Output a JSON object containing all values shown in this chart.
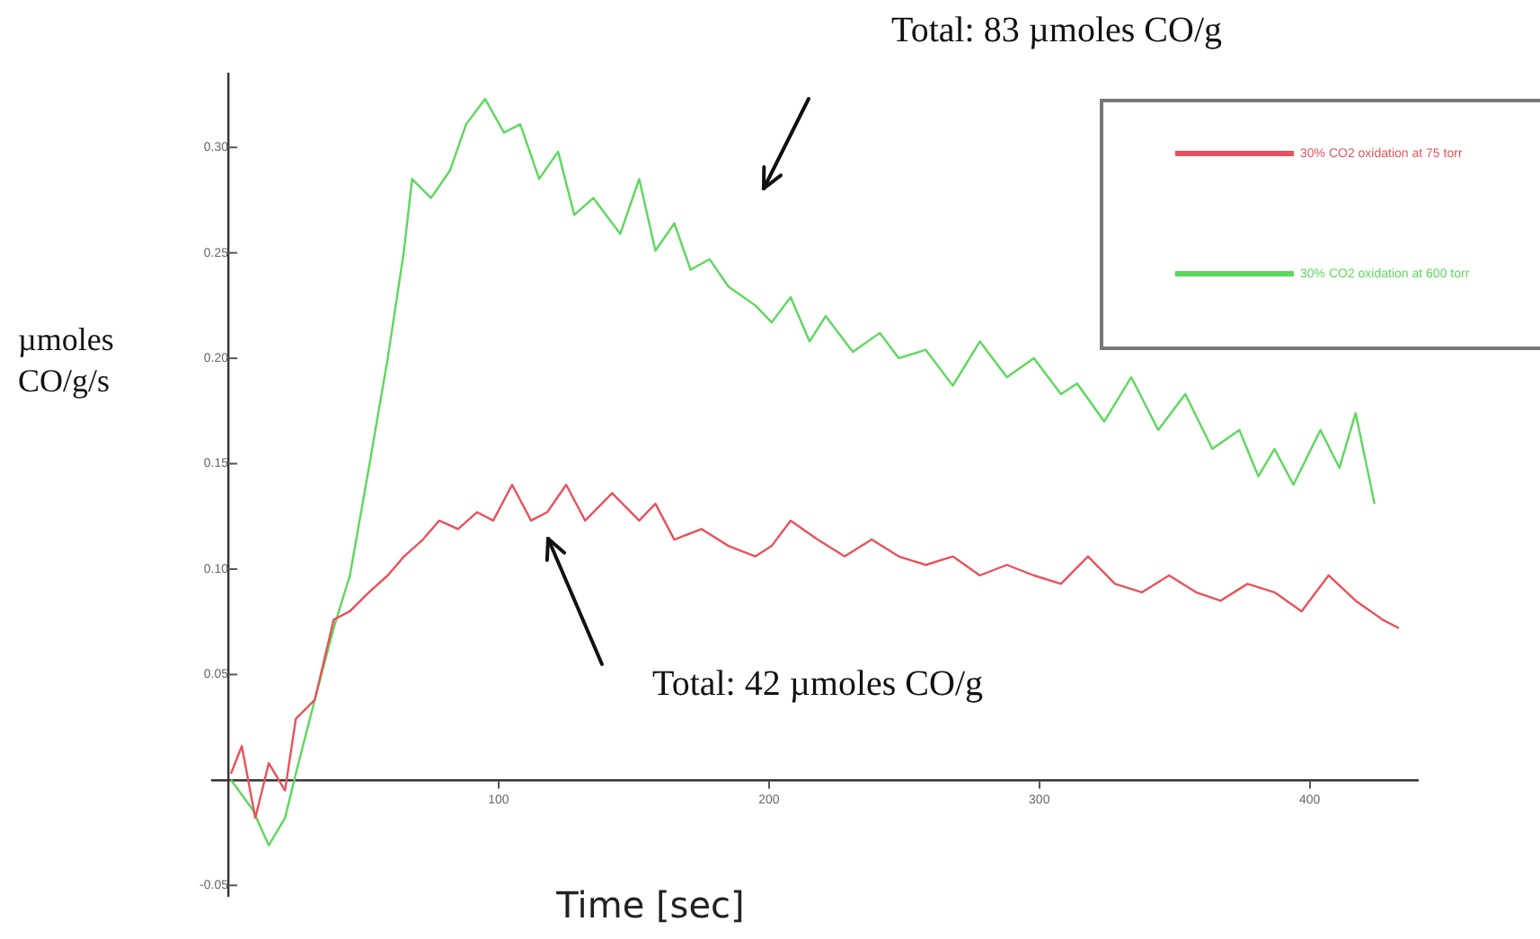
{
  "chart_data": {
    "type": "line",
    "xlabel": "Time [sec]",
    "ylabel": "µmoles\nCO/g/s",
    "xlim": [
      -6,
      440
    ],
    "xticks": [
      100,
      200,
      300,
      400
    ],
    "ylim": [
      -0.055,
      0.335
    ],
    "yticks": [
      {
        "value": -0.05,
        "label": "-0.05"
      },
      {
        "value": 0.05,
        "label": "0.05"
      },
      {
        "value": 0.1,
        "label": "0.10"
      },
      {
        "value": 0.15,
        "label": "0.15"
      },
      {
        "value": 0.2,
        "label": "0.20"
      },
      {
        "value": 0.25,
        "label": "0.25"
      },
      {
        "value": 0.3,
        "label": "0.30"
      }
    ],
    "grid": false,
    "legend": "top right",
    "marker": "none",
    "line_style": "solid",
    "annotations": [
      "Total: 83 µmoles CO/g",
      "Total: 42 µmoles CO/g"
    ],
    "series": [
      {
        "name": "30% CO2 oxidation at 75 torr",
        "color": "#e8525c",
        "x": [
          1,
          5,
          10,
          15,
          21,
          25,
          32,
          39,
          45,
          52,
          59,
          65,
          72,
          78,
          85,
          92,
          98,
          105,
          112,
          118,
          125,
          132,
          142,
          152,
          158,
          165,
          175,
          185,
          195,
          201,
          208,
          218,
          228,
          238,
          248,
          258,
          268,
          278,
          288,
          298,
          308,
          318,
          328,
          338,
          348,
          358,
          367,
          377,
          387,
          397,
          407,
          417,
          427,
          433
        ],
        "values": [
          0.003,
          0.016,
          -0.018,
          0.008,
          -0.005,
          0.029,
          0.038,
          0.076,
          0.08,
          0.089,
          0.097,
          0.106,
          0.114,
          0.123,
          0.119,
          0.127,
          0.123,
          0.14,
          0.123,
          0.127,
          0.14,
          0.123,
          0.136,
          0.123,
          0.131,
          0.114,
          0.119,
          0.111,
          0.106,
          0.111,
          0.123,
          0.114,
          0.106,
          0.114,
          0.106,
          0.102,
          0.106,
          0.097,
          0.102,
          0.097,
          0.093,
          0.106,
          0.093,
          0.089,
          0.097,
          0.089,
          0.085,
          0.093,
          0.089,
          0.08,
          0.097,
          0.085,
          0.076,
          0.072
        ]
      },
      {
        "name": "30% CO2 oxidation at 600 torr",
        "color": "#5cd85c",
        "x": [
          1,
          9,
          15,
          21,
          25,
          32,
          39,
          45,
          52,
          59,
          65,
          68,
          75,
          82,
          88,
          95,
          102,
          108,
          115,
          122,
          128,
          135,
          145,
          152,
          158,
          165,
          171,
          178,
          185,
          195,
          201,
          208,
          215,
          221,
          231,
          241,
          248,
          258,
          268,
          278,
          288,
          298,
          308,
          314,
          324,
          334,
          344,
          354,
          364,
          374,
          381,
          387,
          394,
          404,
          411,
          417,
          424
        ],
        "values": [
          0,
          -0.014,
          -0.031,
          -0.018,
          0.003,
          0.038,
          0.072,
          0.097,
          0.148,
          0.2,
          0.251,
          0.285,
          0.276,
          0.289,
          0.311,
          0.323,
          0.307,
          0.311,
          0.285,
          0.298,
          0.268,
          0.276,
          0.259,
          0.285,
          0.251,
          0.264,
          0.242,
          0.247,
          0.234,
          0.225,
          0.217,
          0.229,
          0.208,
          0.22,
          0.203,
          0.212,
          0.2,
          0.204,
          0.187,
          0.208,
          0.191,
          0.2,
          0.183,
          0.188,
          0.17,
          0.191,
          0.166,
          0.183,
          0.157,
          0.166,
          0.144,
          0.157,
          0.14,
          0.166,
          0.148,
          0.174,
          0.131
        ]
      }
    ]
  }
}
